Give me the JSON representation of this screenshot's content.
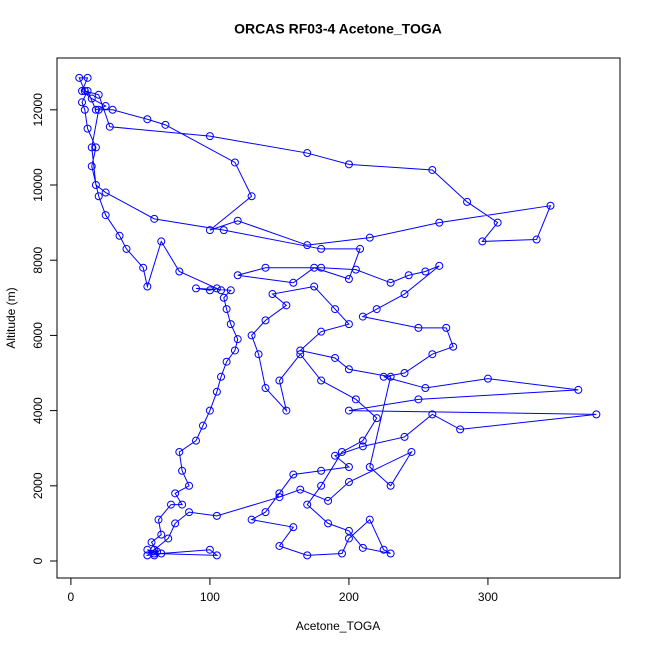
{
  "chart_data": {
    "type": "line",
    "markers": true,
    "title": "ORCAS RF03-4 Acetone_TOGA",
    "x_label": "Acetone_TOGA",
    "y_label": "Altitude (m)",
    "color": "#0000ff",
    "xlim": [
      -10,
      395
    ],
    "ylim": [
      -452,
      13378
    ],
    "xticks": [
      0,
      100,
      200,
      300
    ],
    "yticks": [
      0,
      2000,
      4000,
      6000,
      8000,
      10000,
      12000
    ],
    "x": [
      60,
      55,
      62,
      58,
      65,
      63,
      72,
      80,
      75,
      85,
      80,
      78,
      90,
      95,
      100,
      105,
      108,
      112,
      118,
      120,
      115,
      112,
      110,
      115,
      90,
      100,
      105,
      108,
      78,
      65,
      55,
      52,
      40,
      35,
      25,
      20,
      15,
      18,
      12,
      10,
      8,
      12,
      18,
      25,
      15,
      8,
      12,
      6,
      10,
      20,
      28,
      100,
      170,
      200,
      260,
      285,
      307,
      296,
      335,
      345,
      265,
      215,
      170,
      120,
      100,
      130,
      118,
      68,
      55,
      30,
      20,
      15,
      18,
      25,
      60,
      110,
      180,
      208,
      200,
      175,
      160,
      120,
      140,
      180,
      205,
      230,
      243,
      255,
      265,
      240,
      220,
      210,
      250,
      270,
      275,
      260,
      240,
      225,
      255,
      300,
      365,
      250,
      200,
      378,
      280,
      260,
      240,
      210,
      190,
      200,
      180,
      160,
      150,
      140,
      130,
      160,
      150,
      170,
      195,
      200,
      215,
      225,
      230,
      210,
      200,
      185,
      170,
      180,
      195,
      210,
      220,
      205,
      180,
      165,
      150,
      155,
      140,
      135,
      130,
      140,
      155,
      145,
      175,
      190,
      200,
      180,
      165,
      190,
      200,
      230,
      215,
      230,
      245,
      200,
      185,
      165,
      150,
      105,
      85,
      75,
      70,
      60,
      55,
      65,
      100,
      105,
      60
    ],
    "values": [
      150,
      300,
      250,
      500,
      700,
      1100,
      1500,
      1500,
      1800,
      2000,
      2400,
      2900,
      3200,
      3600,
      4000,
      4500,
      4900,
      5300,
      5600,
      5900,
      6300,
      6700,
      7000,
      7200,
      7250,
      7200,
      7250,
      7200,
      7700,
      8500,
      7300,
      7800,
      8300,
      8650,
      9200,
      9700,
      10500,
      11000,
      11500,
      12000,
      12200,
      12500,
      12000,
      12100,
      12300,
      12500,
      12850,
      12850,
      12500,
      12400,
      11550,
      11300,
      10850,
      10550,
      10400,
      9550,
      9000,
      8500,
      8550,
      9450,
      9000,
      8600,
      8400,
      9050,
      8800,
      9700,
      10600,
      11600,
      11750,
      12000,
      12000,
      11000,
      10000,
      9800,
      9100,
      8800,
      8300,
      8300,
      7500,
      7800,
      7400,
      7600,
      7800,
      7800,
      7750,
      7400,
      7600,
      7700,
      7850,
      7100,
      6700,
      6500,
      6200,
      6200,
      5700,
      5500,
      5000,
      4900,
      4600,
      4850,
      4550,
      4300,
      4000,
      3900,
      3500,
      3900,
      3300,
      3050,
      2800,
      2500,
      2400,
      2300,
      1800,
      1300,
      1100,
      900,
      400,
      150,
      200,
      600,
      1100,
      300,
      200,
      350,
      800,
      1000,
      1500,
      2000,
      2900,
      3200,
      3800,
      4300,
      4800,
      5500,
      4800,
      4000,
      4600,
      5500,
      6000,
      6400,
      6800,
      7100,
      7300,
      6700,
      6300,
      6100,
      5600,
      5400,
      5100,
      4900,
      2500,
      2000,
      2900,
      2100,
      1600,
      1900,
      1700,
      1200,
      1300,
      1000,
      600,
      300,
      150,
      200,
      300,
      150,
      200
    ]
  }
}
